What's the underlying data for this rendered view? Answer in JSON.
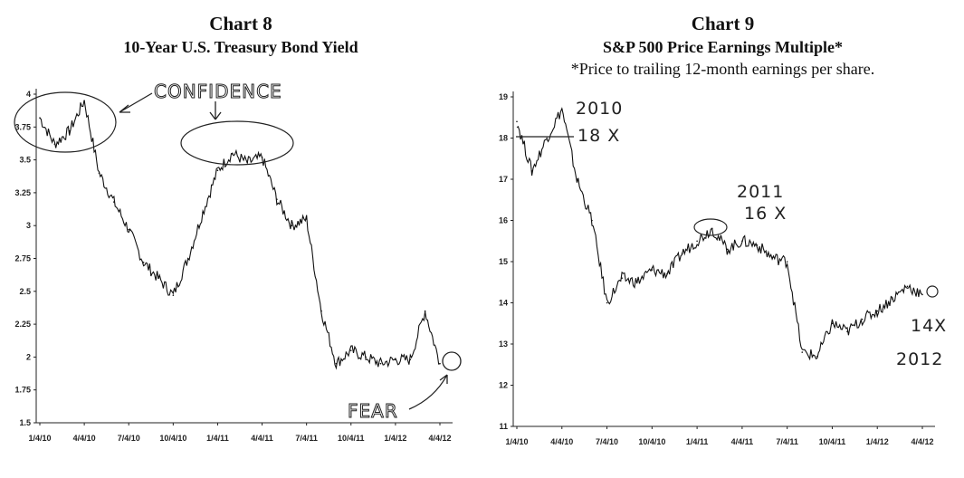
{
  "chart_data": [
    {
      "type": "line",
      "title": "Chart 8",
      "subtitle": "10-Year U.S. Treasury Bond Yield",
      "xlabel": "",
      "ylabel": "",
      "x_ticks": [
        "1/4/10",
        "4/4/10",
        "7/4/10",
        "10/4/10",
        "1/4/11",
        "4/4/11",
        "7/4/11",
        "10/4/11",
        "1/4/12",
        "4/4/12"
      ],
      "y_ticks": [
        "1.5",
        "1.75",
        "2",
        "2.25",
        "2.5",
        "2.75",
        "3",
        "3.25",
        "3.5",
        "3.75",
        "4"
      ],
      "ylim": [
        1.5,
        4.0
      ],
      "grid": false,
      "series": [
        {
          "x": [
            "1/4/10",
            "2/4/10",
            "3/4/10",
            "4/4/10",
            "5/4/10",
            "6/4/10",
            "7/4/10",
            "8/4/10",
            "9/4/10",
            "10/4/10",
            "11/4/10",
            "12/4/10",
            "1/4/11",
            "2/4/11",
            "3/4/11",
            "4/4/11",
            "5/4/11",
            "6/4/11",
            "7/4/11",
            "8/4/11",
            "9/4/11",
            "10/4/11",
            "11/4/11",
            "12/4/11",
            "1/4/12",
            "2/4/12",
            "3/4/12",
            "4/4/12"
          ],
          "values": [
            3.82,
            3.62,
            3.72,
            3.95,
            3.4,
            3.18,
            2.97,
            2.72,
            2.6,
            2.47,
            2.75,
            3.1,
            3.42,
            3.55,
            3.48,
            3.52,
            3.2,
            3.0,
            3.05,
            2.35,
            1.95,
            2.05,
            2.0,
            1.95,
            1.98,
            1.98,
            2.35,
            1.95
          ]
        }
      ],
      "annotations": [
        "CONFIDENCE",
        "FEAR"
      ]
    },
    {
      "type": "line",
      "title": "Chart 9",
      "subtitle": "S&P 500 Price Earnings Multiple*",
      "note": "*Price to trailing 12-month earnings per share.",
      "xlabel": "",
      "ylabel": "",
      "x_ticks": [
        "1/4/10",
        "4/4/10",
        "7/4/10",
        "10/4/10",
        "1/4/11",
        "4/4/11",
        "7/4/11",
        "10/4/11",
        "1/4/12",
        "4/4/12"
      ],
      "y_ticks": [
        "11",
        "12",
        "13",
        "14",
        "15",
        "16",
        "17",
        "18",
        "19"
      ],
      "ylim": [
        11,
        19
      ],
      "grid": false,
      "series": [
        {
          "x": [
            "1/4/10",
            "2/4/10",
            "3/4/10",
            "4/4/10",
            "5/4/10",
            "6/4/10",
            "7/4/10",
            "8/4/10",
            "9/4/10",
            "10/4/10",
            "11/4/10",
            "12/4/10",
            "1/4/11",
            "2/4/11",
            "3/4/11",
            "4/4/11",
            "5/4/11",
            "6/4/11",
            "7/4/11",
            "8/4/11",
            "9/4/11",
            "10/4/11",
            "11/4/11",
            "12/4/11",
            "1/4/12",
            "2/4/12",
            "3/4/12",
            "4/4/12"
          ],
          "values": [
            18.4,
            17.2,
            18.0,
            18.7,
            17.0,
            16.0,
            14.0,
            14.6,
            14.5,
            14.8,
            14.7,
            15.2,
            15.5,
            15.8,
            15.3,
            15.5,
            15.4,
            15.1,
            15.0,
            12.8,
            12.7,
            13.5,
            13.3,
            13.6,
            13.8,
            14.1,
            14.4,
            14.2
          ]
        }
      ],
      "annotations": [
        "2010",
        "18 X",
        "2011",
        "16 X",
        "14X",
        "2012"
      ]
    }
  ]
}
